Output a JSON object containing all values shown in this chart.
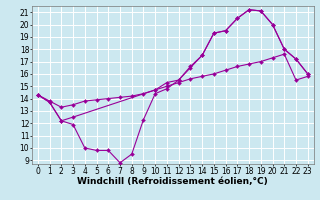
{
  "title": "",
  "xlabel": "Windchill (Refroidissement éolien,°C)",
  "bg_color": "#cce8f0",
  "line_color": "#990099",
  "grid_color": "#ffffff",
  "xmin": -0.5,
  "xmax": 23.5,
  "ymin": 8.7,
  "ymax": 21.5,
  "xticks": [
    0,
    1,
    2,
    3,
    4,
    5,
    6,
    7,
    8,
    9,
    10,
    11,
    12,
    13,
    14,
    15,
    16,
    17,
    18,
    19,
    20,
    21,
    22,
    23
  ],
  "yticks": [
    9,
    10,
    11,
    12,
    13,
    14,
    15,
    16,
    17,
    18,
    19,
    20,
    21
  ],
  "curve1_x": [
    0,
    1,
    2,
    3,
    4,
    5,
    6,
    7,
    8,
    9,
    10,
    11,
    12,
    13,
    14,
    15,
    16,
    17,
    18,
    19,
    20,
    21,
    22,
    23
  ],
  "curve1_y": [
    14.3,
    13.7,
    12.2,
    11.9,
    10.0,
    9.8,
    9.8,
    8.8,
    9.5,
    12.3,
    14.4,
    14.8,
    15.5,
    16.5,
    17.5,
    19.3,
    19.5,
    20.5,
    21.2,
    21.1,
    20.0,
    18.0,
    17.2,
    16.0
  ],
  "curve2_x": [
    0,
    1,
    2,
    3,
    4,
    5,
    6,
    7,
    8,
    9,
    10,
    11,
    12,
    13,
    14,
    15,
    16,
    17,
    18,
    19,
    20,
    21,
    22,
    23
  ],
  "curve2_y": [
    14.3,
    13.8,
    13.3,
    13.5,
    13.8,
    13.9,
    14.0,
    14.1,
    14.2,
    14.4,
    14.7,
    15.0,
    15.3,
    15.6,
    15.8,
    16.0,
    16.3,
    16.6,
    16.8,
    17.0,
    17.3,
    17.6,
    15.5,
    15.8
  ],
  "curve3_x": [
    0,
    1,
    2,
    3,
    10,
    11,
    12,
    13,
    14,
    15,
    16,
    17,
    18,
    19,
    20,
    21,
    22,
    23
  ],
  "curve3_y": [
    14.3,
    13.7,
    12.2,
    12.5,
    14.7,
    15.3,
    15.5,
    16.6,
    17.5,
    19.3,
    19.5,
    20.5,
    21.2,
    21.1,
    20.0,
    18.0,
    17.2,
    16.0
  ],
  "xlabel_fontsize": 6.5,
  "tick_fontsize": 5.5
}
